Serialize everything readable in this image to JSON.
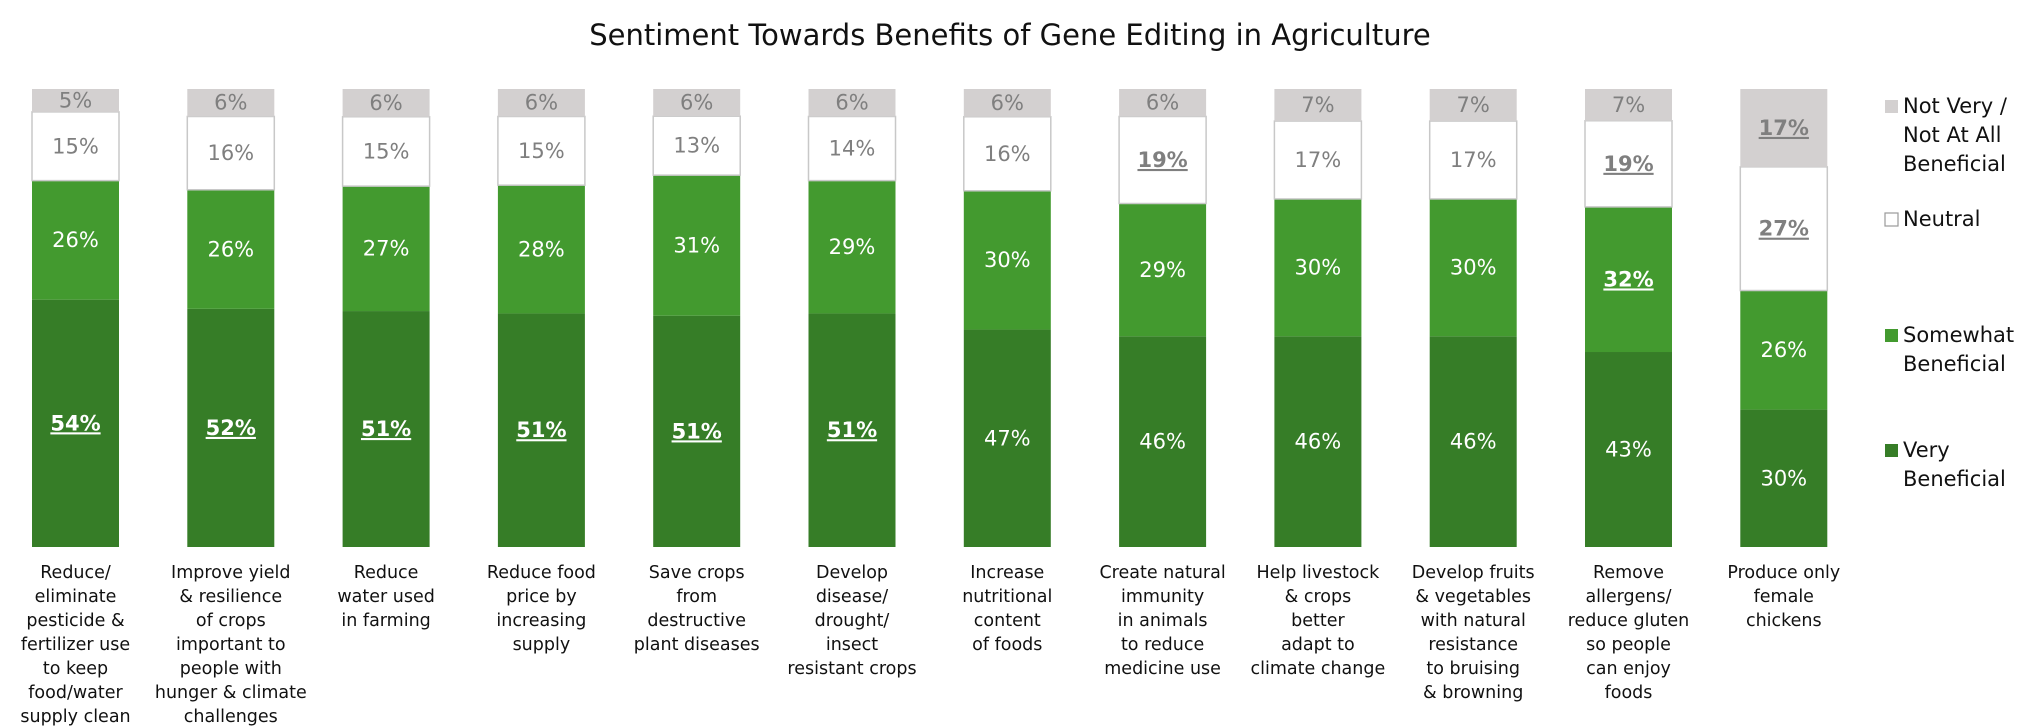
{
  "chart_data": {
    "type": "bar",
    "stacked": true,
    "normalized": true,
    "title": "Sentiment Towards Benefits of Gene Editing in Agriculture",
    "categories": [
      "Reduce/ eliminate pesticide & fertilizer use to keep food/water supply clean",
      "Improve yield & resilience of crops important to people with hunger & climate challenges",
      "Reduce water used in farming",
      "Reduce food price by increasing supply",
      "Save crops from destructive plant diseases",
      "Develop disease/ drought/ insect resistant crops",
      "Increase nutritional content of foods",
      "Create natural immunity in animals to reduce medicine use",
      "Help livestock & crops better adapt to climate change",
      "Develop fruits & vegetables with natural resistance to bruising & browning",
      "Remove allergens/ reduce gluten so people can enjoy foods",
      "Produce only female chickens"
    ],
    "category_lines": [
      [
        "Reduce/",
        "eliminate",
        "pesticide &",
        "fertilizer use",
        "to keep",
        "food/water",
        "supply clean"
      ],
      [
        "Improve yield",
        "& resilience",
        "of crops",
        "important to",
        "people with",
        "hunger & climate",
        "challenges"
      ],
      [
        "Reduce",
        "water used",
        "in farming"
      ],
      [
        "Reduce food",
        "price by",
        "increasing",
        "supply"
      ],
      [
        "Save crops",
        "from",
        "destructive",
        "plant diseases"
      ],
      [
        "Develop",
        "disease/",
        "drought/",
        "insect",
        "resistant crops"
      ],
      [
        "Increase",
        "nutritional",
        "content",
        "of foods"
      ],
      [
        "Create natural",
        "immunity",
        "in animals",
        "to reduce",
        "medicine use"
      ],
      [
        "Help livestock",
        "& crops",
        "better",
        "adapt to",
        "climate change"
      ],
      [
        "Develop fruits",
        "& vegetables",
        "with natural",
        "resistance",
        "to bruising",
        "& browning"
      ],
      [
        "Remove",
        "allergens/",
        "reduce gluten",
        "so people",
        "can enjoy",
        "foods"
      ],
      [
        "Produce only",
        "female",
        "chickens"
      ]
    ],
    "series": [
      {
        "name": "Very Beneficial",
        "color": "#367d27",
        "label_color": "#ffffff",
        "values": [
          54,
          52,
          51,
          51,
          51,
          51,
          47,
          46,
          46,
          46,
          43,
          30
        ],
        "labels": [
          "54%",
          "52%",
          "51%",
          "51%",
          "51%",
          "51%",
          "47%",
          "46%",
          "46%",
          "46%",
          "43%",
          "30%"
        ],
        "highlight": [
          true,
          true,
          true,
          true,
          true,
          true,
          false,
          false,
          false,
          false,
          false,
          false
        ]
      },
      {
        "name": "Somewhat Beneficial",
        "color": "#439a2f",
        "label_color": "#ffffff",
        "values": [
          26,
          26,
          27,
          28,
          31,
          29,
          30,
          29,
          30,
          30,
          32,
          26
        ],
        "labels": [
          "26%",
          "26%",
          "27%",
          "28%",
          "31%",
          "29%",
          "30%",
          "29%",
          "30%",
          "30%",
          "32%",
          "26%"
        ],
        "highlight": [
          false,
          false,
          false,
          false,
          false,
          false,
          false,
          false,
          false,
          false,
          true,
          false
        ]
      },
      {
        "name": "Neutral",
        "color": "#ffffff",
        "label_color": "#7f7f7f",
        "values": [
          15,
          16,
          15,
          15,
          13,
          14,
          16,
          19,
          17,
          17,
          19,
          27
        ],
        "labels": [
          "15%",
          "16%",
          "15%",
          "15%",
          "13%",
          "14%",
          "16%",
          "19%",
          "17%",
          "17%",
          "19%",
          "27%"
        ],
        "highlight": [
          false,
          false,
          false,
          false,
          false,
          false,
          false,
          true,
          false,
          false,
          true,
          true
        ]
      },
      {
        "name": "Not Very / Not At All Beneficial",
        "color": "#d3d0d0",
        "label_color": "#7f7f7f",
        "values": [
          5,
          6,
          6,
          6,
          6,
          6,
          6,
          6,
          7,
          7,
          7,
          17
        ],
        "labels": [
          "5%",
          "6%",
          "6%",
          "6%",
          "6%",
          "6%",
          "6%",
          "6%",
          "7%",
          "7%",
          "7%",
          "17%"
        ],
        "highlight": [
          false,
          false,
          false,
          false,
          false,
          false,
          false,
          false,
          false,
          false,
          false,
          true
        ]
      }
    ],
    "legend": {
      "placement": "right",
      "order": [
        3,
        2,
        1,
        0
      ],
      "entries": [
        {
          "series": 3,
          "lines": [
            "Not Very /",
            "Not At All",
            "Beneficial"
          ]
        },
        {
          "series": 2,
          "lines": [
            "Neutral"
          ]
        },
        {
          "series": 1,
          "lines": [
            "Somewhat",
            "Beneficial"
          ]
        },
        {
          "series": 0,
          "lines": [
            "Very",
            "Beneficial"
          ]
        }
      ]
    },
    "ylim": [
      0,
      100
    ],
    "grid": false,
    "xlabel": "",
    "ylabel": ""
  }
}
